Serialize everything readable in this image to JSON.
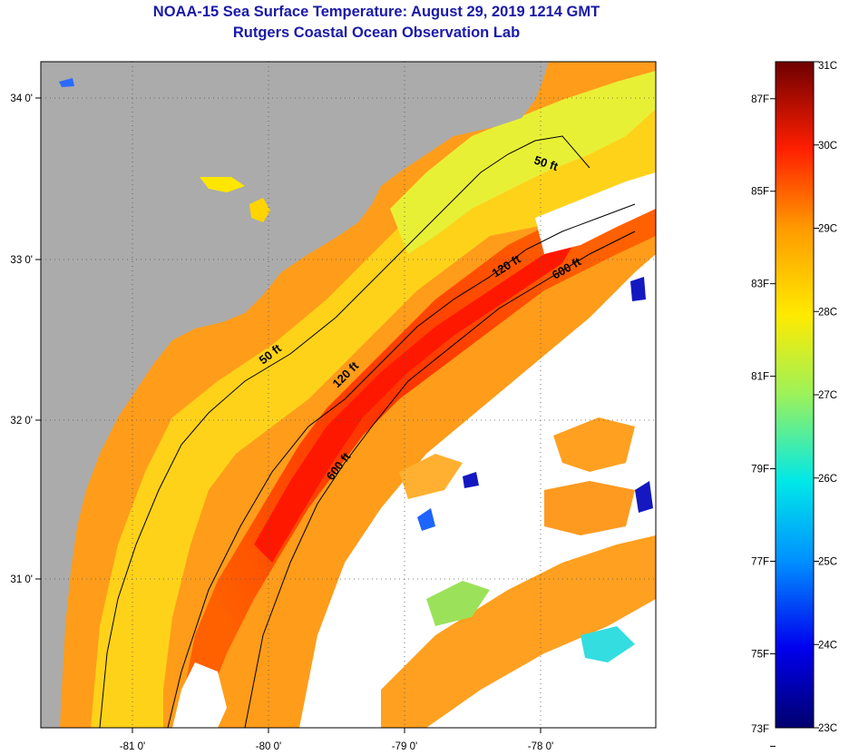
{
  "header": {
    "title": "NOAA-15 Sea Surface Temperature:  August 29, 2019 1214 GMT",
    "subtitle": "Rutgers Coastal Ocean Observation Lab"
  },
  "map": {
    "lon_ticks": [
      "-81 0'",
      "-80 0'",
      "-79 0'",
      "-78 0'"
    ],
    "lat_ticks": [
      "34 0'",
      "33 0'",
      "32 0'",
      "31 0'"
    ],
    "isobath_labels": [
      "50 ft",
      "120 ft",
      "600 ft",
      "50 ft",
      "120 ft",
      "600 ft"
    ]
  },
  "colorbar": {
    "fahrenheit": [
      "87F",
      "85F",
      "83F",
      "81F",
      "79F",
      "77F",
      "75F",
      "73F"
    ],
    "celsius": [
      "31C",
      "30C",
      "29C",
      "28C",
      "27C",
      "26C",
      "25C",
      "24C",
      "23C"
    ],
    "colors": [
      "#000080",
      "#0000ff",
      "#00aaff",
      "#00ffff",
      "#66ff66",
      "#ffff00",
      "#ff9900",
      "#ff0000",
      "#800000"
    ]
  },
  "colors": {
    "land": "#ababab",
    "cloud": "#ffffff",
    "title": "#1a1aa8"
  }
}
